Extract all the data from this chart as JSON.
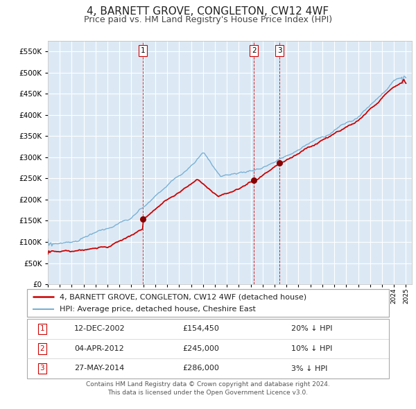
{
  "title": "4, BARNETT GROVE, CONGLETON, CW12 4WF",
  "subtitle": "Price paid vs. HM Land Registry's House Price Index (HPI)",
  "background_color": "#ffffff",
  "plot_bg_color": "#dce9f5",
  "grid_color": "#ffffff",
  "ylim": [
    0,
    575000
  ],
  "xlim_start": 1995.0,
  "xlim_end": 2025.5,
  "xtick_years": [
    1995,
    1996,
    1997,
    1998,
    1999,
    2000,
    2001,
    2002,
    2003,
    2004,
    2005,
    2006,
    2007,
    2008,
    2009,
    2010,
    2011,
    2012,
    2013,
    2014,
    2015,
    2016,
    2017,
    2018,
    2019,
    2020,
    2021,
    2022,
    2023,
    2024,
    2025
  ],
  "sale_color": "#cc0000",
  "hpi_color": "#7ab0d4",
  "sale_marker_color": "#880000",
  "vline_color": "#cc0000",
  "sale_linewidth": 1.3,
  "hpi_linewidth": 1.0,
  "transactions": [
    {
      "num": 1,
      "date_label": "12-DEC-2002",
      "year": 2002.95,
      "price": 154450,
      "hpi_pct": "20% ↓ HPI"
    },
    {
      "num": 2,
      "date_label": "04-APR-2012",
      "year": 2012.26,
      "price": 245000,
      "hpi_pct": "10% ↓ HPI"
    },
    {
      "num": 3,
      "date_label": "27-MAY-2014",
      "year": 2014.41,
      "price": 286000,
      "hpi_pct": "3% ↓ HPI"
    }
  ],
  "legend_line1": "4, BARNETT GROVE, CONGLETON, CW12 4WF (detached house)",
  "legend_line2": "HPI: Average price, detached house, Cheshire East",
  "footer1": "Contains HM Land Registry data © Crown copyright and database right 2024.",
  "footer2": "This data is licensed under the Open Government Licence v3.0.",
  "title_fontsize": 11,
  "subtitle_fontsize": 9,
  "footer_fontsize": 6.5,
  "table_fontsize": 8,
  "legend_fontsize": 8
}
